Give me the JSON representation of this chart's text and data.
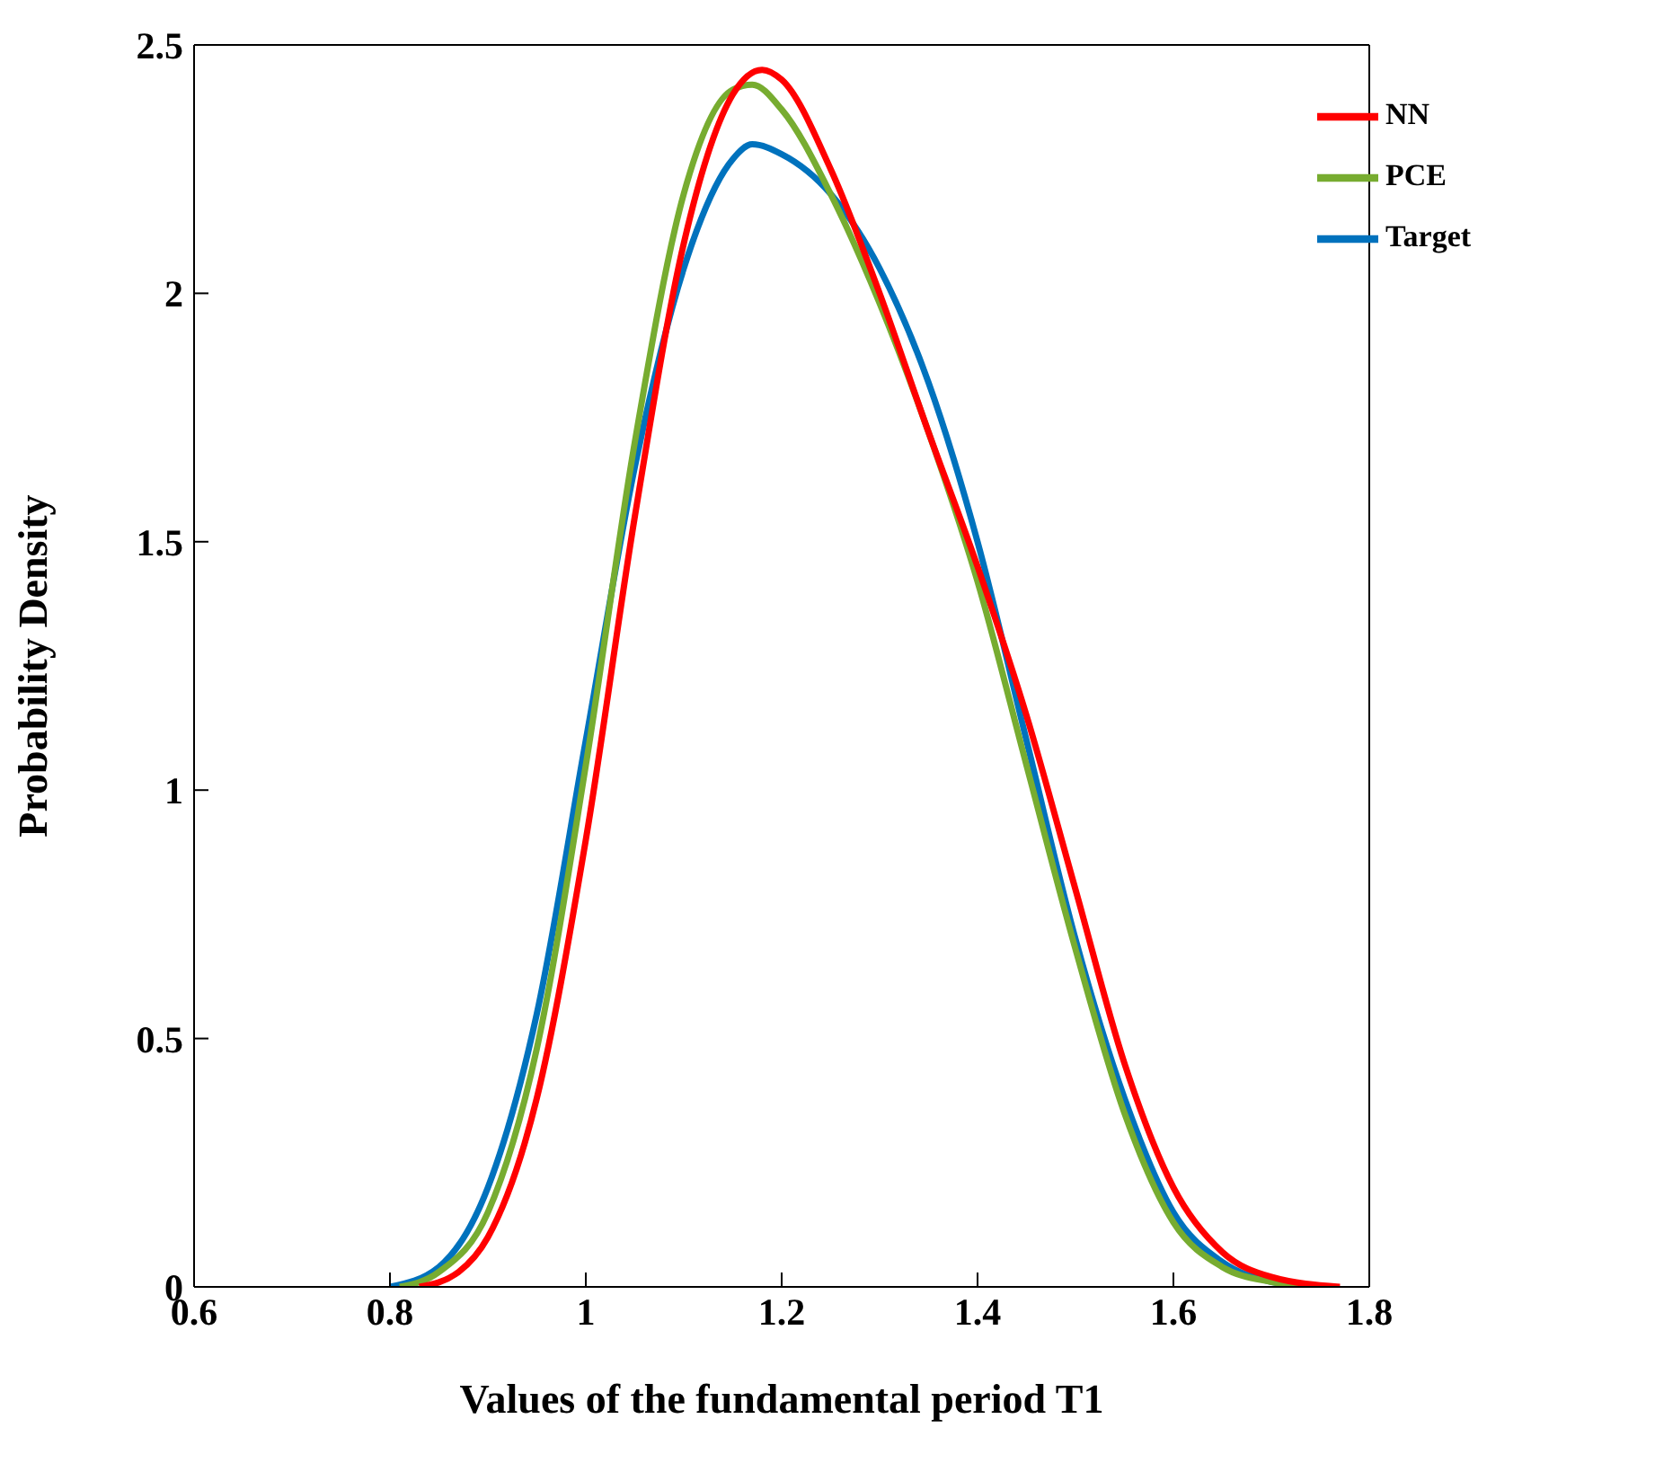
{
  "chart_data": {
    "type": "line",
    "xlabel": "Values of the fundamental period T1",
    "ylabel": "Probability Density",
    "xlim": [
      0.6,
      1.8
    ],
    "xticks": [
      0.6,
      0.8,
      1,
      1.2,
      1.4,
      1.6,
      1.8
    ],
    "ylim": [
      0,
      2.5
    ],
    "yticks": [
      0,
      0.5,
      1,
      1.5,
      2,
      2.5
    ],
    "grid": false,
    "legend": "top right",
    "marker": "none",
    "line_style": "solid",
    "series": [
      {
        "name": "Target",
        "color": "#0072bd",
        "x": [
          0.8,
          0.85,
          0.9,
          0.95,
          1.0,
          1.05,
          1.1,
          1.15,
          1.17,
          1.2,
          1.25,
          1.3,
          1.35,
          1.4,
          1.45,
          1.5,
          1.55,
          1.6,
          1.65,
          1.7,
          1.74
        ],
        "values": [
          0,
          0.04,
          0.2,
          0.55,
          1.1,
          1.65,
          2.05,
          2.27,
          2.3,
          2.28,
          2.2,
          2.05,
          1.82,
          1.5,
          1.1,
          0.7,
          0.38,
          0.15,
          0.05,
          0.01,
          0
        ]
      },
      {
        "name": "PCE",
        "color": "#77ac30",
        "x": [
          0.81,
          0.85,
          0.9,
          0.95,
          1.0,
          1.05,
          1.1,
          1.15,
          1.17,
          1.2,
          1.25,
          1.3,
          1.35,
          1.4,
          1.45,
          1.5,
          1.55,
          1.6,
          1.65,
          1.7,
          1.74
        ],
        "values": [
          0,
          0.03,
          0.15,
          0.48,
          1.05,
          1.7,
          2.2,
          2.41,
          2.42,
          2.37,
          2.2,
          1.98,
          1.72,
          1.42,
          1.05,
          0.68,
          0.35,
          0.13,
          0.04,
          0.01,
          0
        ]
      },
      {
        "name": "NN",
        "color": "#ff0000",
        "x": [
          0.83,
          0.87,
          0.9,
          0.95,
          1.0,
          1.05,
          1.1,
          1.15,
          1.18,
          1.2,
          1.25,
          1.3,
          1.35,
          1.4,
          1.45,
          1.5,
          1.55,
          1.6,
          1.65,
          1.7,
          1.77
        ],
        "values": [
          0,
          0.03,
          0.1,
          0.38,
          0.9,
          1.55,
          2.1,
          2.4,
          2.45,
          2.43,
          2.25,
          2.0,
          1.72,
          1.45,
          1.15,
          0.8,
          0.45,
          0.2,
          0.07,
          0.02,
          0
        ]
      }
    ]
  }
}
